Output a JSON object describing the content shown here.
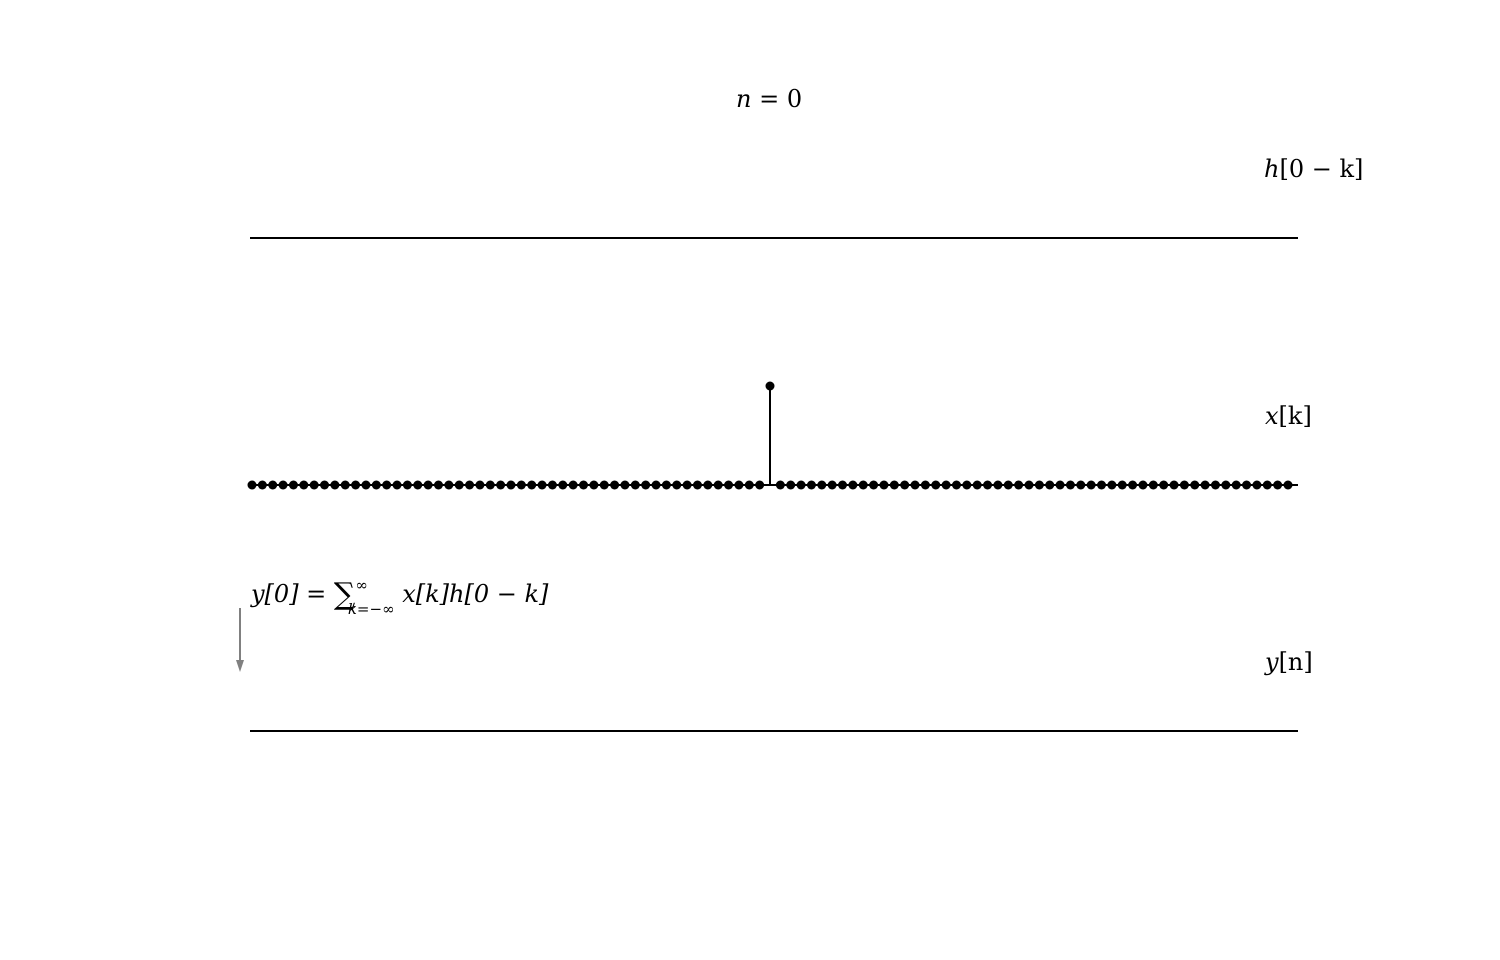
{
  "title": {
    "var": "n",
    "eq": " = ",
    "value": "0"
  },
  "panels": {
    "h": {
      "label_fn": "h",
      "label_arg": "[0 − k]"
    },
    "x": {
      "label_fn": "x",
      "label_arg": "[k]"
    },
    "y": {
      "label_fn": "y",
      "label_arg": "[n]"
    }
  },
  "formula": {
    "lhs": "y[0] = ",
    "sum": "∑",
    "upper": "∞",
    "lower": "k=−∞",
    "rhs": " x[k]h[0 − k]"
  },
  "chart_data": {
    "type": "stem",
    "panels": [
      {
        "name": "h[0 − k]",
        "k": [],
        "values": []
      },
      {
        "name": "x[k]",
        "k_range": [
          -50,
          50
        ],
        "impulse": {
          "k": 0,
          "value": 1
        },
        "other_values": 0
      },
      {
        "name": "y[n]",
        "n": [],
        "values": []
      }
    ],
    "annotation_arrow": "down",
    "colors": {
      "stem": "#000000",
      "axis": "#000000",
      "arrow": "#808080"
    }
  }
}
